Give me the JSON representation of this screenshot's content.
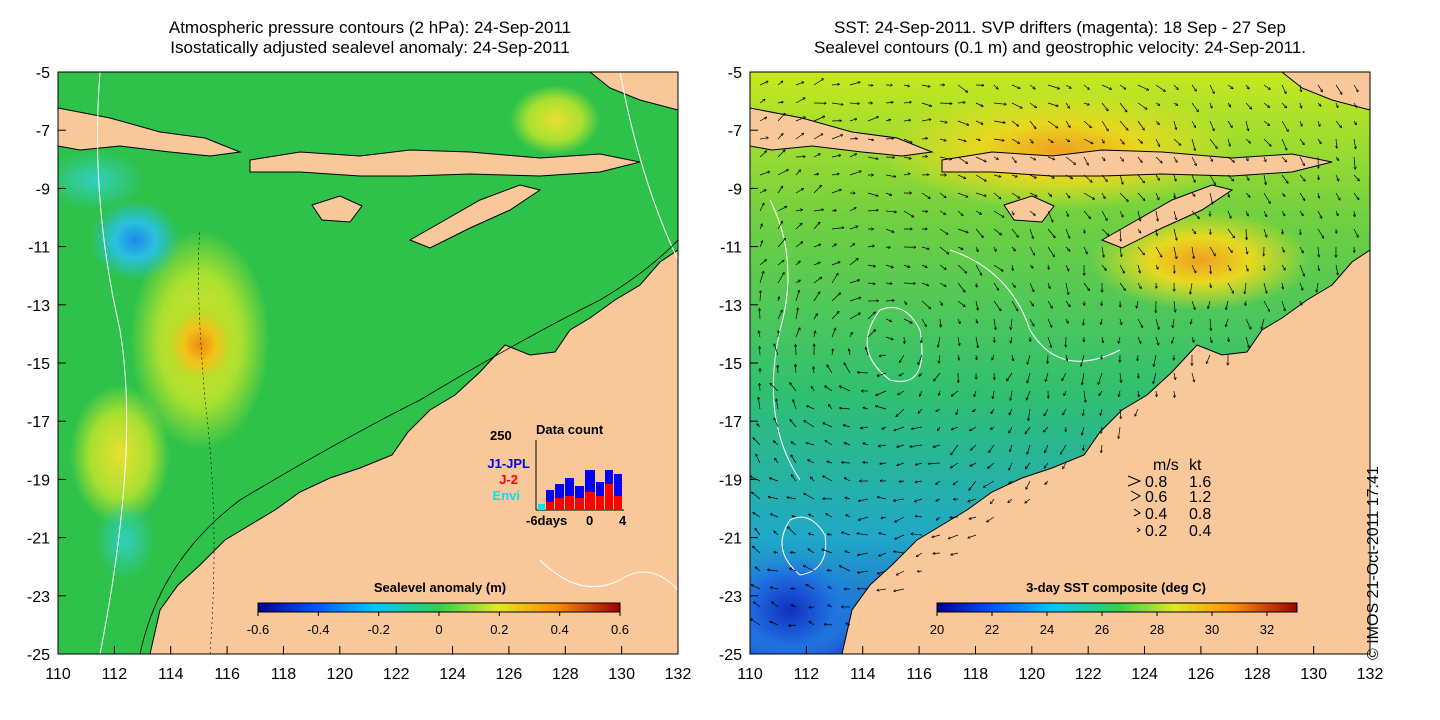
{
  "left_panel": {
    "title_line1": "Atmospheric pressure contours (2 hPa): 24-Sep-2011",
    "title_line2": "Isostatically adjusted sealevel anomaly: 24-Sep-2011",
    "x_ticks": [
      "110",
      "112",
      "114",
      "116",
      "118",
      "120",
      "122",
      "124",
      "126",
      "128",
      "130",
      "132"
    ],
    "y_ticks": [
      "-5",
      "-7",
      "-9",
      "-11",
      "-13",
      "-15",
      "-17",
      "-19",
      "-21",
      "-23",
      "-25"
    ],
    "colorbar": {
      "title": "Sealevel anomaly (m)",
      "ticks": [
        "-0.6",
        "-0.4",
        "-0.2",
        "0",
        "0.2",
        "0.4",
        "0.6"
      ]
    },
    "data_count": {
      "title": "Data count",
      "ymax_label": "250",
      "legend": [
        {
          "name": "J1-JPL",
          "color": "#0000ff"
        },
        {
          "name": "J-2",
          "color": "#ff0000"
        },
        {
          "name": "Envi",
          "color": "#00e5ee"
        }
      ],
      "x_ticks": [
        "-6days",
        "0",
        "4"
      ]
    }
  },
  "right_panel": {
    "title_line1": "SST: 24-Sep-2011. SVP drifters (magenta): 18 Sep - 27 Sep",
    "title_line2": "Sealevel contours (0.1 m) and geostrophic velocity: 24-Sep-2011.",
    "x_ticks": [
      "110",
      "112",
      "114",
      "116",
      "118",
      "120",
      "122",
      "124",
      "126",
      "128",
      "130",
      "132"
    ],
    "y_ticks": [
      "-5",
      "-7",
      "-9",
      "-11",
      "-13",
      "-15",
      "-17",
      "-19",
      "-21",
      "-23",
      "-25"
    ],
    "colorbar": {
      "title": "3-day SST composite (deg C)",
      "ticks": [
        "20",
        "22",
        "24",
        "26",
        "28",
        "30",
        "32"
      ]
    },
    "velocity_legend": {
      "header_ms": "m/s",
      "header_kt": "kt",
      "rows": [
        {
          "ms": "0.8",
          "kt": "1.6"
        },
        {
          "ms": "0.6",
          "kt": "1.2"
        },
        {
          "ms": "0.4",
          "kt": "0.8"
        },
        {
          "ms": "0.2",
          "kt": "0.4"
        }
      ]
    }
  },
  "copyright": "© IMOS 21-Oct-2011 17:41",
  "colors": {
    "land": "#f8c79a",
    "ocean_base_left": "#2ec24a",
    "ocean_base_right": "#3cc45a"
  }
}
